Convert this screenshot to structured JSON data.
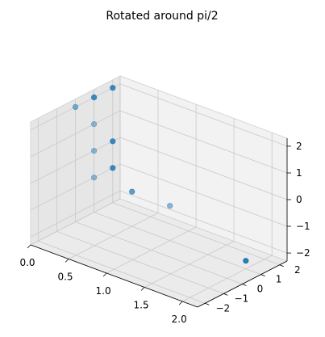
{
  "chart_data": {
    "type": "scatter3d",
    "title": "Rotated around pi/2",
    "xlabel": "",
    "ylabel": "",
    "zlabel": "",
    "x_ticks": [
      "0.0",
      "0.5",
      "1.0",
      "1.5",
      "2.0"
    ],
    "y_ticks": [
      "−2",
      "−1",
      "0",
      "1",
      "2"
    ],
    "z_ticks": [
      "−2",
      "−1",
      "0",
      "1",
      "2"
    ],
    "xlim": [
      0,
      2.2
    ],
    "ylim": [
      -2.4,
      2.4
    ],
    "zlim": [
      -2.3,
      2.3
    ],
    "grid": true,
    "marker_color": "#1f77b4",
    "points": [
      {
        "x": 0.0,
        "y": 2.0,
        "z": 2.0,
        "alpha": 0.85
      },
      {
        "x": 0.0,
        "y": 1.0,
        "z": 2.0,
        "alpha": 0.85
      },
      {
        "x": 0.0,
        "y": 0.0,
        "z": 2.0,
        "alpha": 0.55
      },
      {
        "x": 0.0,
        "y": 1.0,
        "z": 1.0,
        "alpha": 0.45
      },
      {
        "x": 0.0,
        "y": 1.0,
        "z": 0.0,
        "alpha": 0.45
      },
      {
        "x": 0.0,
        "y": 2.0,
        "z": 0.0,
        "alpha": 0.85
      },
      {
        "x": 0.0,
        "y": 2.0,
        "z": -1.0,
        "alpha": 0.85
      },
      {
        "x": 0.0,
        "y": 1.0,
        "z": -1.0,
        "alpha": 0.45
      },
      {
        "x": 0.5,
        "y": 1.0,
        "z": -1.0,
        "alpha": 0.7
      },
      {
        "x": 1.0,
        "y": 1.0,
        "z": -1.0,
        "alpha": 0.5
      },
      {
        "x": 2.0,
        "y": 1.0,
        "z": -2.0,
        "alpha": 0.95
      }
    ]
  }
}
